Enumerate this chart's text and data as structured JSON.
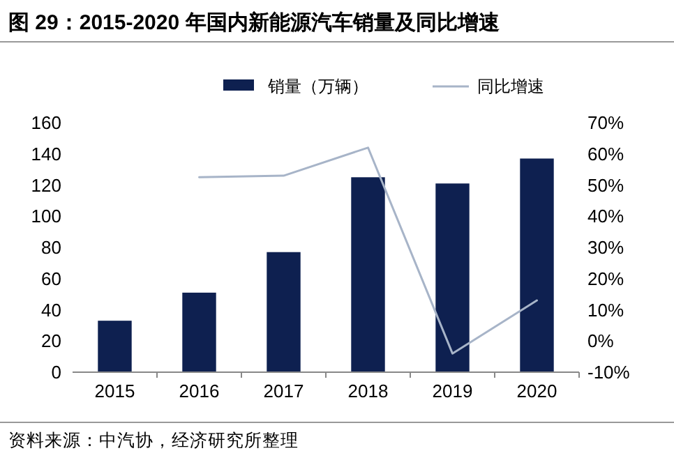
{
  "chart_data": {
    "type": "bar",
    "title": "图 29：2015-2020 年国内新能源汽车销量及同比增速",
    "categories": [
      "2015",
      "2016",
      "2017",
      "2018",
      "2019",
      "2020"
    ],
    "series": [
      {
        "name": "销量（万辆）",
        "color": "#0e2050",
        "values": [
          33,
          51,
          77,
          125,
          121,
          137
        ]
      },
      {
        "name": "同比增速",
        "type": "line",
        "axis": "y2",
        "color": "#a7b4c8",
        "values": [
          null,
          52.5,
          53,
          62,
          -4,
          13
        ]
      }
    ],
    "ylim": [
      0,
      160
    ],
    "yticks": [
      0,
      20,
      40,
      60,
      80,
      100,
      120,
      140,
      160
    ],
    "y2lim": [
      -10,
      70
    ],
    "y2ticks": [
      {
        "value": -10,
        "label": "-10%"
      },
      {
        "value": 0,
        "label": "0%"
      },
      {
        "value": 10,
        "label": "10%"
      },
      {
        "value": 20,
        "label": "20%"
      },
      {
        "value": 30,
        "label": "30%"
      },
      {
        "value": 40,
        "label": "40%"
      },
      {
        "value": 50,
        "label": "50%"
      },
      {
        "value": 60,
        "label": "60%"
      },
      {
        "value": 70,
        "label": "70%"
      }
    ],
    "legend": "top",
    "grid": false,
    "annotations": [
      "资料来源：中汽协，经济研究所整理"
    ]
  }
}
